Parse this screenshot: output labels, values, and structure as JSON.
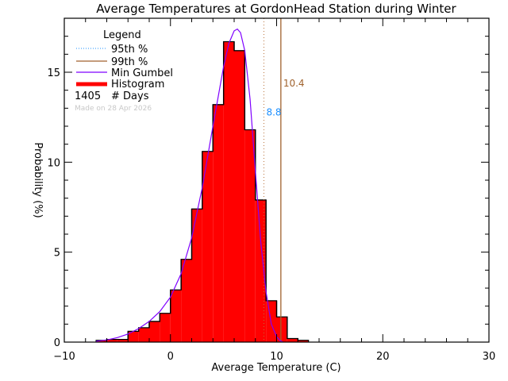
{
  "chart_data": {
    "type": "bar",
    "title": "Average Temperatures at GordonHead Station during Winter",
    "xlabel": "Average Temperature (C)",
    "ylabel": "Probability  (%)",
    "xlim": [
      -10,
      30
    ],
    "ylim": [
      0,
      18
    ],
    "x_ticks": [
      -10,
      0,
      10,
      20,
      30
    ],
    "y_ticks": [
      0,
      5,
      10,
      15
    ],
    "grid": false,
    "legend_position": "top-left",
    "bin_width": 1,
    "bins": [
      {
        "x0": -7,
        "x1": -6,
        "value": 0.1
      },
      {
        "x0": -6,
        "x1": -5,
        "value": 0.15
      },
      {
        "x0": -5,
        "x1": -4,
        "value": 0.15
      },
      {
        "x0": -4,
        "x1": -3,
        "value": 0.6
      },
      {
        "x0": -3,
        "x1": -2,
        "value": 0.8
      },
      {
        "x0": -2,
        "x1": -1,
        "value": 1.15
      },
      {
        "x0": -1,
        "x1": 0,
        "value": 1.6
      },
      {
        "x0": 0,
        "x1": 1,
        "value": 2.9
      },
      {
        "x0": 1,
        "x1": 2,
        "value": 4.6
      },
      {
        "x0": 2,
        "x1": 3,
        "value": 7.4
      },
      {
        "x0": 3,
        "x1": 4,
        "value": 10.6
      },
      {
        "x0": 4,
        "x1": 5,
        "value": 13.2
      },
      {
        "x0": 5,
        "x1": 6,
        "value": 16.7
      },
      {
        "x0": 6,
        "x1": 7,
        "value": 16.2
      },
      {
        "x0": 7,
        "x1": 8,
        "value": 11.8
      },
      {
        "x0": 8,
        "x1": 9,
        "value": 7.9
      },
      {
        "x0": 9,
        "x1": 10,
        "value": 2.3
      },
      {
        "x0": 10,
        "x1": 11,
        "value": 1.4
      },
      {
        "x0": 11,
        "x1": 12,
        "value": 0.2
      },
      {
        "x0": 12,
        "x1": 13,
        "value": 0.1
      }
    ],
    "series": [
      {
        "name": "Histogram",
        "color": "#ff0000",
        "type": "histogram"
      },
      {
        "name": "Min Gumbel",
        "color": "#7f00ff",
        "type": "line",
        "x": [
          -7,
          -6,
          -5,
          -4,
          -3,
          -2,
          -1,
          0,
          1,
          2,
          3,
          4,
          5,
          5.5,
          6,
          6.3,
          6.6,
          7,
          7.5,
          8,
          8.5,
          9,
          9.5,
          10,
          10.3,
          10.6
        ],
        "y": [
          0.05,
          0.12,
          0.25,
          0.45,
          0.75,
          1.15,
          1.7,
          2.5,
          3.8,
          5.8,
          8.6,
          12.0,
          15.3,
          16.6,
          17.3,
          17.4,
          17.2,
          16.2,
          13.5,
          9.5,
          5.6,
          2.8,
          1.0,
          0.3,
          0.1,
          0.0
        ]
      },
      {
        "name": "95th %",
        "color": "#b8733c",
        "type": "vline",
        "x": 8.8,
        "style": "dotted",
        "label": "8.8",
        "label_color": "#1e90ff"
      },
      {
        "name": "99th %",
        "color": "#a0622d",
        "type": "vline",
        "x": 10.4,
        "style": "solid",
        "label": "10.4",
        "label_color": "#a0622d"
      }
    ],
    "annotations": [
      {
        "text": "8.8",
        "x": 8.8,
        "y": 12.6,
        "color": "#1e90ff"
      },
      {
        "text": "10.4",
        "x": 10.4,
        "y": 14.2,
        "color": "#a0622d"
      }
    ]
  },
  "legend": {
    "title": "Legend",
    "items": [
      {
        "label": "95th %",
        "color": "#1e90ff",
        "style": "dotted"
      },
      {
        "label": "99th %",
        "color": "#a0622d",
        "style": "solid"
      },
      {
        "label": "Min Gumbel",
        "color": "#7f00ff",
        "style": "solid"
      },
      {
        "label": "Histogram",
        "color": "#ff0000",
        "style": "thick"
      }
    ],
    "days_count": "1405",
    "days_label": "# Days",
    "made_on": "Made on 28 Apr 2026"
  }
}
